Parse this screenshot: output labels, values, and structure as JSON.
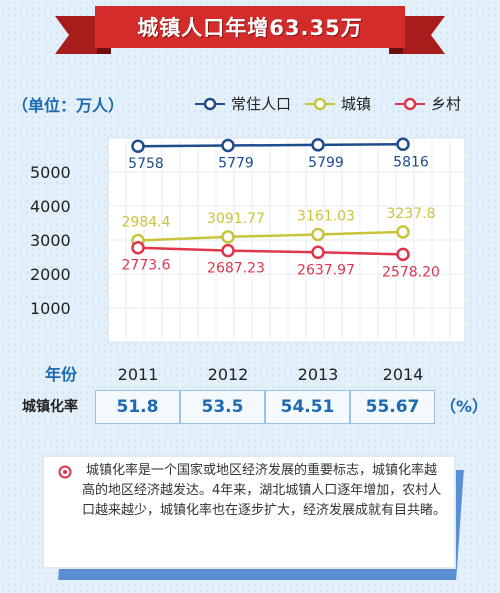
{
  "banner": {
    "title": "城镇人口年增63.35万"
  },
  "unit_label": "（单位：万人）",
  "colors": {
    "resident": "#1e4c8c",
    "urban": "#c8c43a",
    "rural": "#e0354a",
    "accent": "#1d6ab0",
    "banner": "#d42b2b"
  },
  "chart_data": {
    "type": "line",
    "categories": [
      "2011",
      "2012",
      "2013",
      "2014"
    ],
    "x_axis_title": "年份",
    "ylim": [
      0,
      6000
    ],
    "yticks": [
      "1000",
      "2000",
      "3000",
      "4000",
      "5000"
    ],
    "legend_position": "top",
    "grid": true,
    "series": [
      {
        "name": "常住人口",
        "values": [
          5758,
          5779,
          5799,
          5816
        ],
        "labels": [
          "5758",
          "5779",
          "5799",
          "5816"
        ]
      },
      {
        "name": "城镇",
        "values": [
          2984.4,
          3091.77,
          3161.03,
          3237.8
        ],
        "labels": [
          "2984.4",
          "3091.77",
          "3161.03",
          "3237.8"
        ]
      },
      {
        "name": "乡村",
        "values": [
          2773.6,
          2687.23,
          2637.97,
          2578.2
        ],
        "labels": [
          "2773.6",
          "2687.23",
          "2637.97",
          "2578.20"
        ]
      }
    ]
  },
  "urbanization": {
    "title": "城镇化率",
    "values": [
      "51.8",
      "53.5",
      "54.51",
      "55.67"
    ],
    "unit": "（%）"
  },
  "note": {
    "text": "城镇化率是一个国家或地区经济发展的重要标志，城镇化率越高的地区经济越发达。4年来，湖北城镇人口逐年增加，农村人口越来越少，城镇化率也在逐步扩大，经济发展成就有目共睹。"
  }
}
